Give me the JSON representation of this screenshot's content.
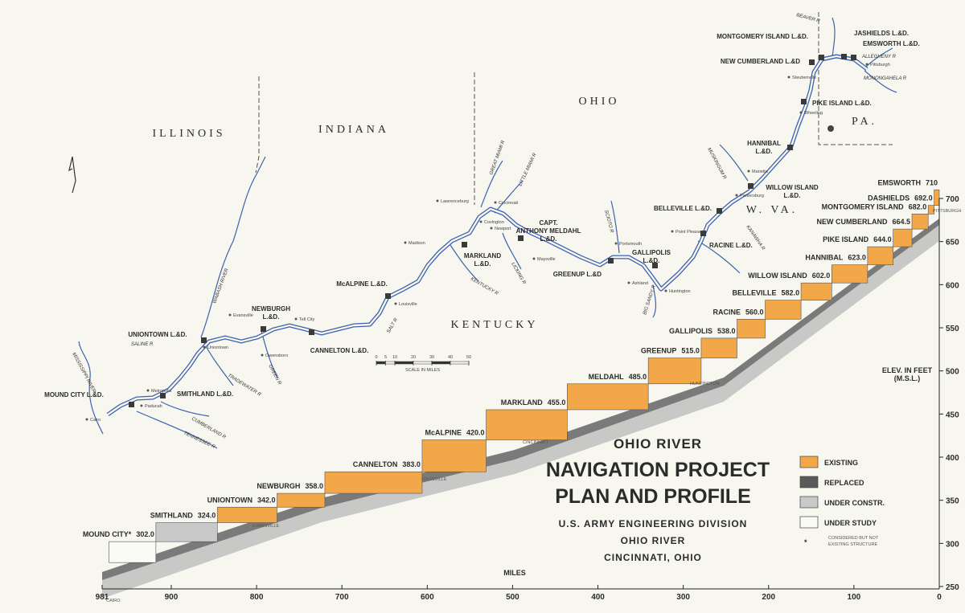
{
  "title": {
    "line1": "OHIO RIVER",
    "line2": "NAVIGATION PROJECT",
    "line3": "PLAN AND PROFILE",
    "line4": "U.S. ARMY ENGINEERING DIVISION",
    "line5": "OHIO RIVER",
    "line6": "CINCINNATI, OHIO"
  },
  "legend": [
    {
      "label": "EXISTING",
      "color": "#f2a748"
    },
    {
      "label": "REPLACED",
      "color": "#5a5a5a"
    },
    {
      "label": "UNDER CONSTR.",
      "color": "#c9c9c9"
    },
    {
      "label": "UNDER STUDY",
      "color": "#fbfbf6"
    }
  ],
  "legend_note": {
    "symbol": "*",
    "lines": [
      "CONSIDERED BUT NOT",
      "EXISTING STRUCTURE"
    ]
  },
  "map": {
    "states": [
      "ILLINOIS",
      "INDIANA",
      "OHIO",
      "KENTUCKY",
      "W. VA.",
      "PA."
    ],
    "locks": [
      [
        "MONTGOMERY ISLAND L.&D."
      ],
      [
        "JASHIELDS L.&D."
      ],
      [
        "EMSWORTH L.&D."
      ],
      [
        "NEW CUMBERLAND L.&D"
      ],
      [
        "PIKE ISLAND L.&D."
      ],
      [
        "HANNIBAL",
        "L.&D."
      ],
      [
        "WILLOW ISLAND",
        "L.&D."
      ],
      [
        "BELLEVILLE L.&D."
      ],
      [
        "RACINE L.&D."
      ],
      [
        "GALLIPOLIS",
        "L.&D."
      ],
      [
        "GREENUP L.&D"
      ],
      [
        "CAPT.",
        "ANTHONY MELDAHL",
        "L.&D."
      ],
      [
        "MARKLAND",
        "L.&D."
      ],
      [
        "McALPINE L.&D."
      ],
      [
        "NEWBURGH",
        "L.&D."
      ],
      [
        "CANNELTON L.&D."
      ],
      [
        "UNIONTOWN L.&D."
      ],
      [
        "SMITHLAND L.&D."
      ],
      [
        "MOUND CITY L.&D."
      ]
    ],
    "rivers": [
      "BEAVER R",
      "ALLEGHENY R",
      "MONONGAHELA R",
      "MUSKINGUM R",
      "KANAWHA R",
      "BIG SANDY R",
      "SCIOTO R",
      "LITTLE MIAMI R",
      "GREAT MIAMI R",
      "LICKING R",
      "KENTUCKY R",
      "SALT R",
      "GREEN R",
      "TRADEWATER R",
      "SALINE R",
      "CUMBERLAND R",
      "TENNESSEE R",
      "MISSISSIPPI RIVER",
      "WABASH RIVER"
    ],
    "cities": [
      "Steubenville",
      "Wheeling",
      "Marietta",
      "Parkersburg",
      "Point Pleasant",
      "Huntington",
      "Ashland",
      "Portsmouth",
      "Maysville",
      "Newport",
      "Covington",
      "Cincinnati",
      "Lawrenceburg",
      "Madison",
      "Louisville",
      "Tell City",
      "Owensboro",
      "Evansville",
      "Uniontown",
      "Metropolis",
      "Paducah",
      "Cairo",
      "Pittsburgh"
    ],
    "scale": {
      "label": "SCALE IN MILES",
      "ticks": [
        0,
        5,
        10,
        20,
        30,
        40,
        50
      ]
    }
  },
  "chart_data": {
    "type": "profile",
    "xlabel": "MILES",
    "ylabel": [
      "ELEV. IN FEET",
      "(M.S.L.)"
    ],
    "xlim": [
      981,
      0
    ],
    "ylim": [
      250,
      700
    ],
    "xticks": [
      981,
      900,
      800,
      700,
      600,
      500,
      400,
      300,
      200,
      100,
      0
    ],
    "yticks": [
      250,
      300,
      350,
      400,
      450,
      500,
      550,
      600,
      650,
      700
    ],
    "categories": [
      "MOUND CITY*",
      "SMITHLAND",
      "UNIONTOWN",
      "NEWBURGH",
      "CANNELTON",
      "McALPINE",
      "MARKLAND",
      "MELDAHL",
      "GREENUP",
      "GALLIPOLIS",
      "RACINE",
      "BELLEVILLE",
      "WILLOW ISLAND",
      "HANNIBAL",
      "PIKE ISLAND",
      "NEW CUMBERLAND",
      "MONTGOMERY ISLAND",
      "DASHIELDS",
      "EMSWORTH"
    ],
    "x": [
      973,
      918,
      846,
      776,
      720,
      606,
      531,
      436,
      341,
      279,
      237,
      204,
      162,
      126,
      84,
      54,
      32,
      13,
      6
    ],
    "values": [
      302,
      324,
      342,
      358,
      383,
      420,
      455,
      485,
      515,
      538,
      560,
      582,
      602,
      623,
      644,
      664.5,
      682,
      692,
      710
    ],
    "value_labels": [
      "302.0",
      "324.0",
      "342.0",
      "358.0",
      "383.0",
      "420.0",
      "455.0",
      "485.0",
      "515.0",
      "538.0",
      "560.0",
      "582.0",
      "602.0",
      "623.0",
      "644.0",
      "664.5",
      "682.0",
      "692.0",
      "710"
    ],
    "status": [
      3,
      2,
      0,
      0,
      0,
      0,
      0,
      0,
      0,
      0,
      0,
      0,
      0,
      0,
      0,
      0,
      0,
      0,
      0
    ],
    "annotations": [
      "CAIRO",
      "EVANSVILLE",
      "LOUISVILLE",
      "CINCINNATI",
      "HUNTINGTON",
      "PITTSBURGH"
    ]
  }
}
